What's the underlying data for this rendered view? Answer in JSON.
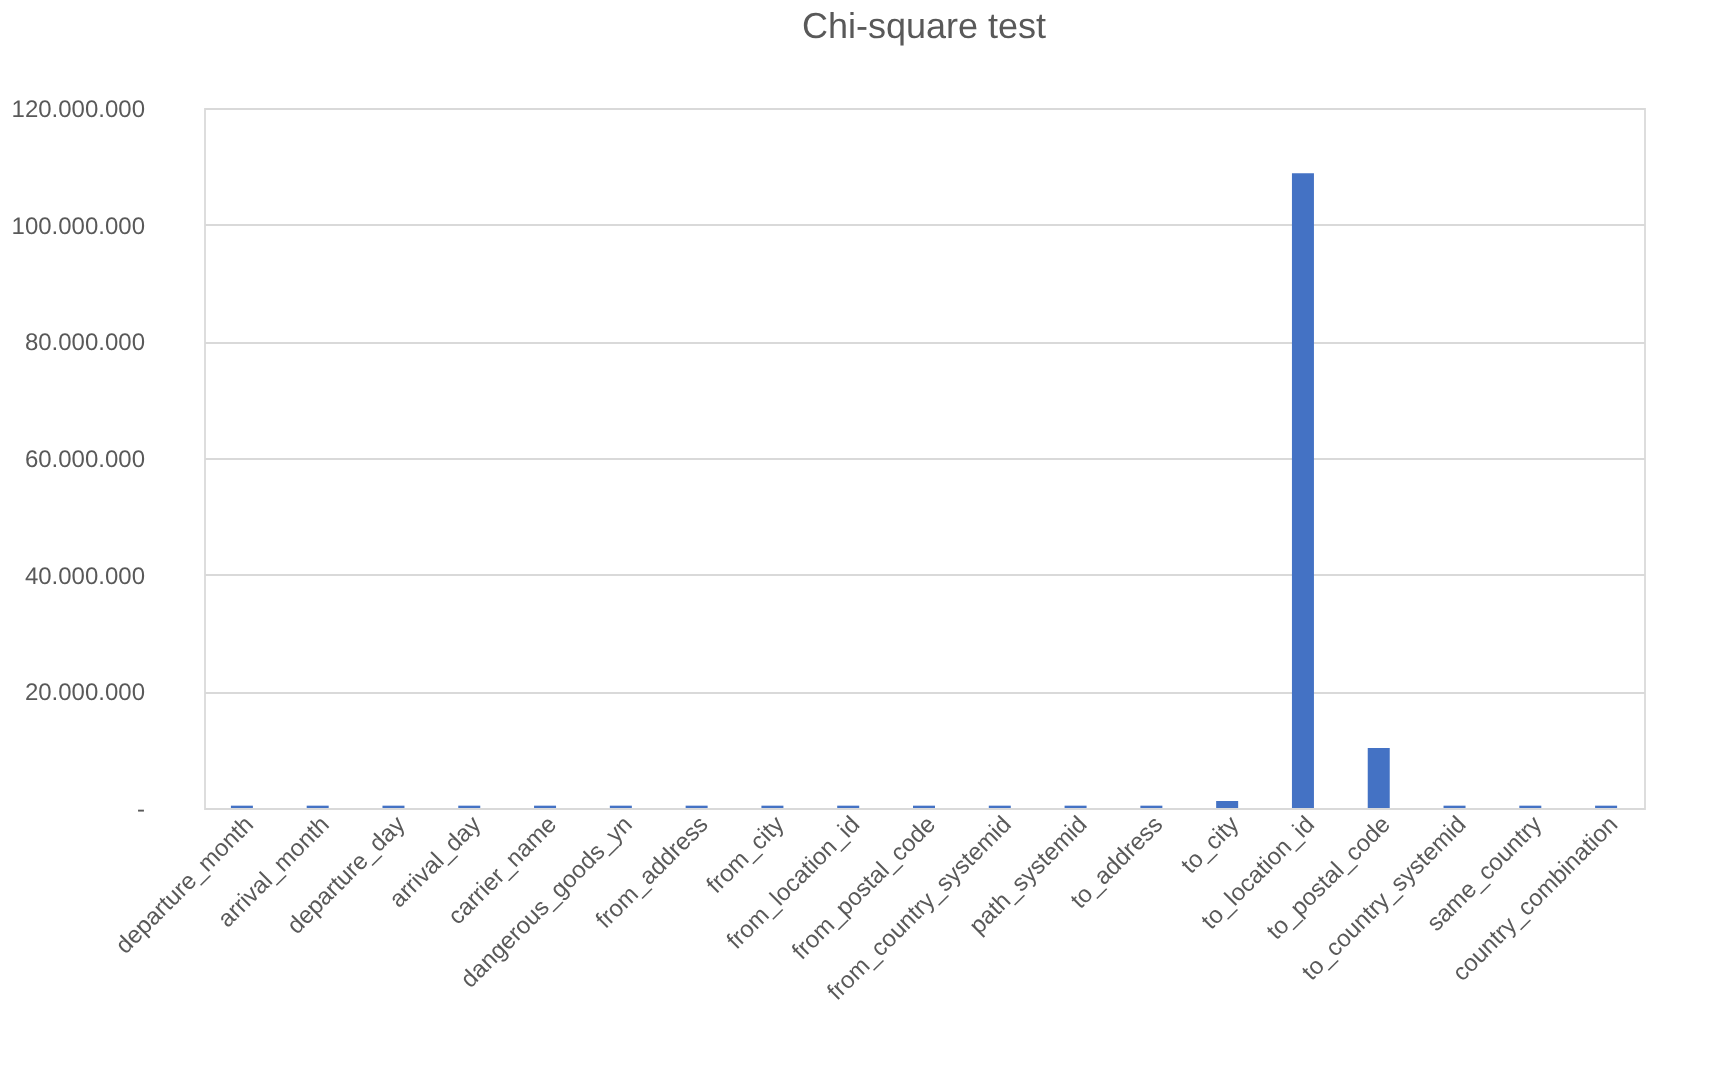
{
  "chart_data": {
    "type": "bar",
    "title": "Chi-square test",
    "categories": [
      "departure_month",
      "arrival_month",
      "departure_day",
      "arrival_day",
      "carrier_name",
      "dangerous_goods_yn",
      "from_address",
      "from_city",
      "from_location_id",
      "from_postal_code",
      "from_country_systemid",
      "path_systemid",
      "to_address",
      "to_city",
      "to_location_id",
      "to_postal_code",
      "to_country_systemid",
      "same_country",
      "country_combination"
    ],
    "values": [
      400000,
      400000,
      400000,
      400000,
      400000,
      400000,
      400000,
      400000,
      400000,
      400000,
      400000,
      400000,
      400000,
      1200000,
      108800000,
      10300000,
      400000,
      400000,
      400000
    ],
    "color": "#4472c4",
    "ylim": [
      0,
      120000000
    ],
    "yticks": [
      {
        "value": 0,
        "label": "-"
      },
      {
        "value": 20000000,
        "label": "20.000.000"
      },
      {
        "value": 40000000,
        "label": "40.000.000"
      },
      {
        "value": 60000000,
        "label": "60.000.000"
      },
      {
        "value": 80000000,
        "label": "80.000.000"
      },
      {
        "value": 100000000,
        "label": "100.000.000"
      },
      {
        "value": 120000000,
        "label": "120.000.000"
      }
    ],
    "grid": "y"
  }
}
